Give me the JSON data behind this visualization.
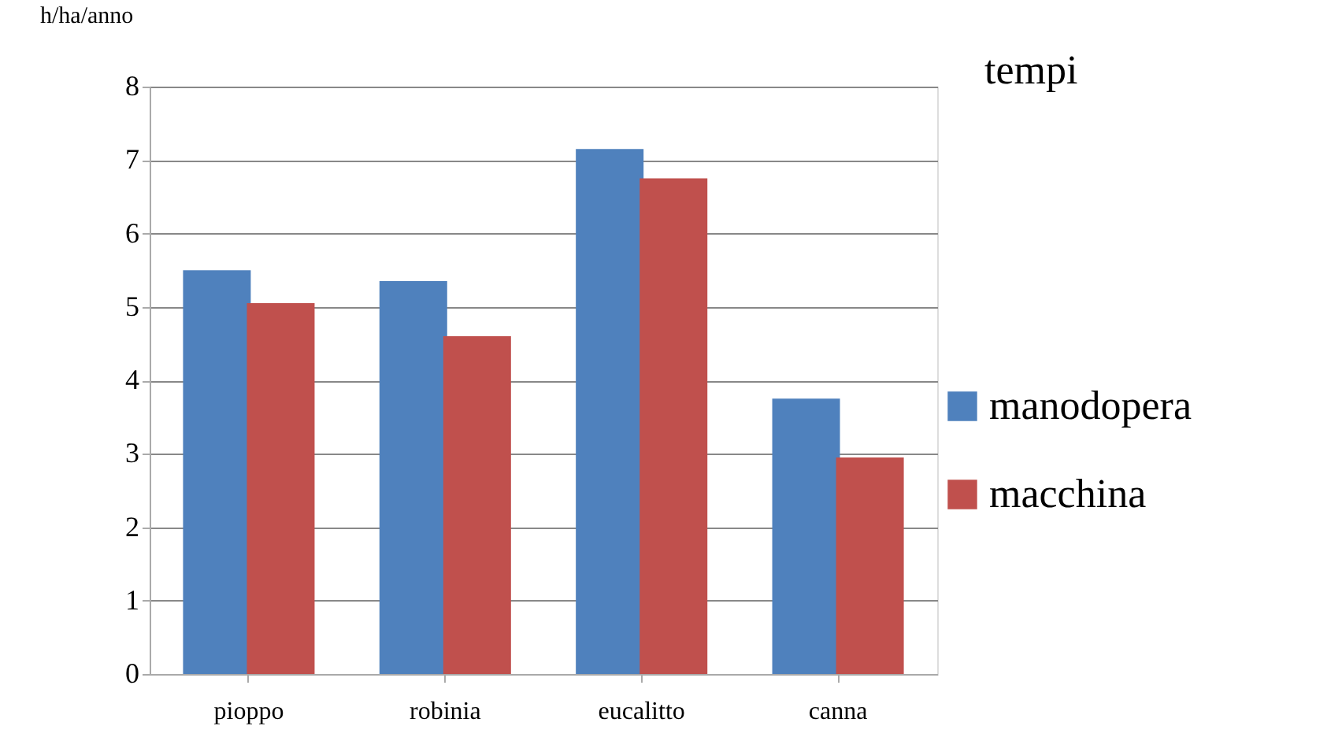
{
  "chart_data": {
    "type": "bar",
    "title": "tempi",
    "ylabel": "h/ha/anno",
    "categories": [
      "pioppo",
      "robinia",
      "eucalitto",
      "canna"
    ],
    "series": [
      {
        "name": "manodopera",
        "color": "#4f81bd",
        "values": [
          5.5,
          5.35,
          7.15,
          3.75
        ]
      },
      {
        "name": "macchina",
        "color": "#c0504d",
        "values": [
          5.05,
          4.6,
          6.75,
          2.95
        ]
      }
    ],
    "ylim": [
      0,
      8
    ],
    "yticks": [
      0,
      1,
      2,
      3,
      4,
      5,
      6,
      7,
      8
    ],
    "grid": "y",
    "legend": "right"
  }
}
